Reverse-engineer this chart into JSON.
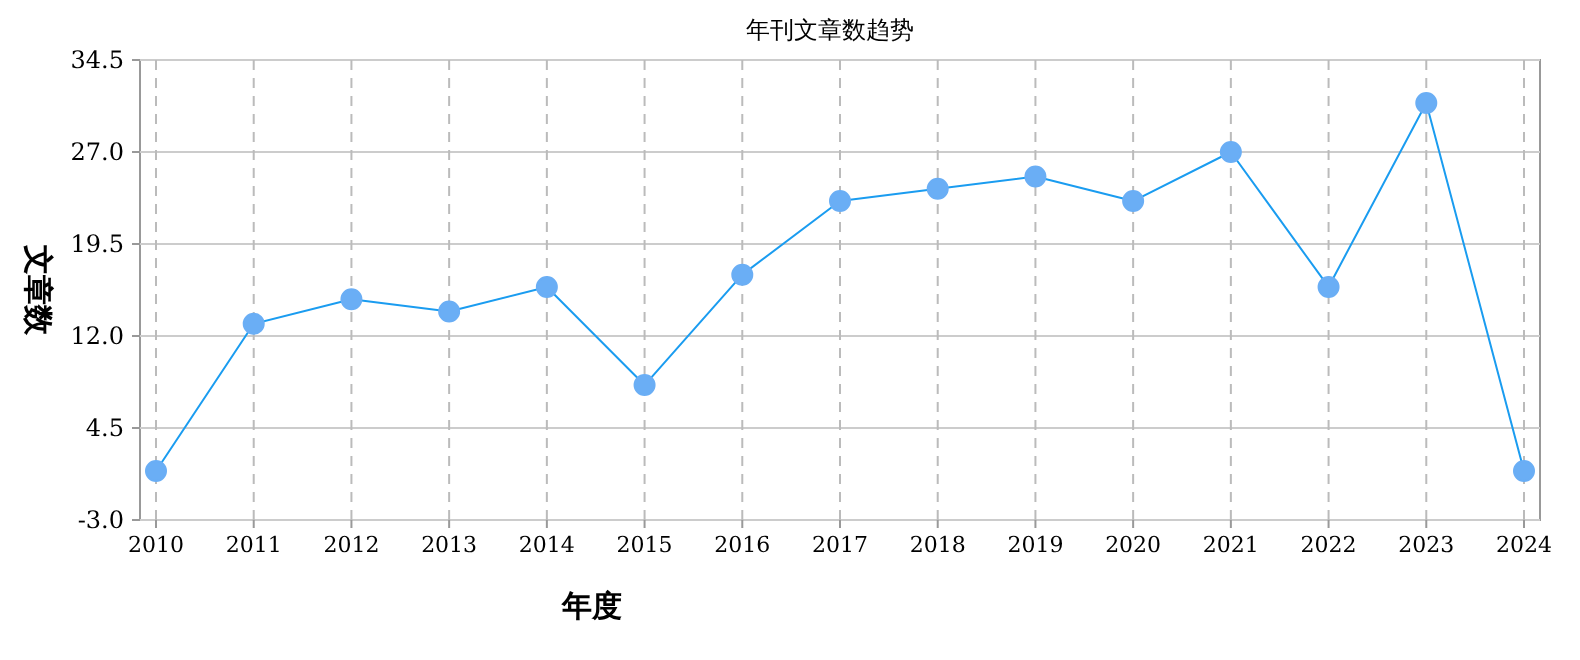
{
  "chart_data": {
    "type": "line",
    "title": "年刊文章数趋势",
    "xlabel": "年度",
    "ylabel": "文章数",
    "categories": [
      "2010",
      "2011",
      "2012",
      "2013",
      "2014",
      "2015",
      "2016",
      "2017",
      "2018",
      "2019",
      "2020",
      "2021",
      "2022",
      "2023",
      "2024"
    ],
    "series": [
      {
        "color": "#1a9cf0",
        "values": [
          1,
          13,
          15,
          14,
          16,
          8,
          17,
          23,
          24,
          25,
          23,
          27,
          16,
          31,
          1
        ]
      }
    ],
    "ylim": [
      -3,
      34.5
    ],
    "yticks": [
      {
        "value": -3,
        "label": "-3.0"
      },
      4.5,
      {
        "value": 12,
        "label": "12.0"
      },
      19.5,
      {
        "value": 27,
        "label": "27.0"
      },
      34.5
    ],
    "grid": true,
    "marker": "circle",
    "line_style": "solid"
  }
}
